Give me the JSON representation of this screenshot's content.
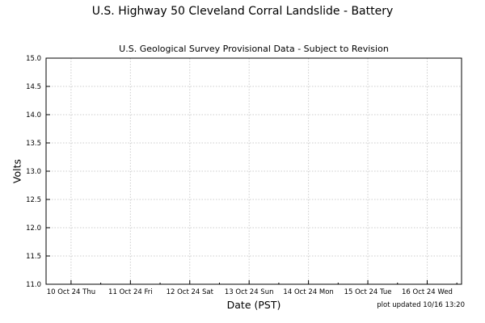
{
  "chart_data": {
    "type": "line",
    "title": "U.S. Highway 50 Cleveland Corral Landslide - Battery",
    "subtitle": "U.S. Geological Survey Provisional Data - Subject to Revision",
    "xlabel": "Date (PST)",
    "ylabel": "Volts",
    "ylim": [
      11.0,
      15.0
    ],
    "yticks": [
      "11.0",
      "11.5",
      "12.0",
      "12.5",
      "13.0",
      "13.5",
      "14.0",
      "14.5",
      "15.0"
    ],
    "xticks": [
      "10 Oct 24 Thu",
      "11 Oct 24 Fri",
      "12 Oct 24 Sat",
      "13 Oct 24 Sun",
      "14 Oct 24 Mon",
      "15 Oct 24 Tue",
      "16 Oct 24 Wed"
    ],
    "grid": true,
    "series": []
  },
  "note": "plot updated 10/16 13:20"
}
